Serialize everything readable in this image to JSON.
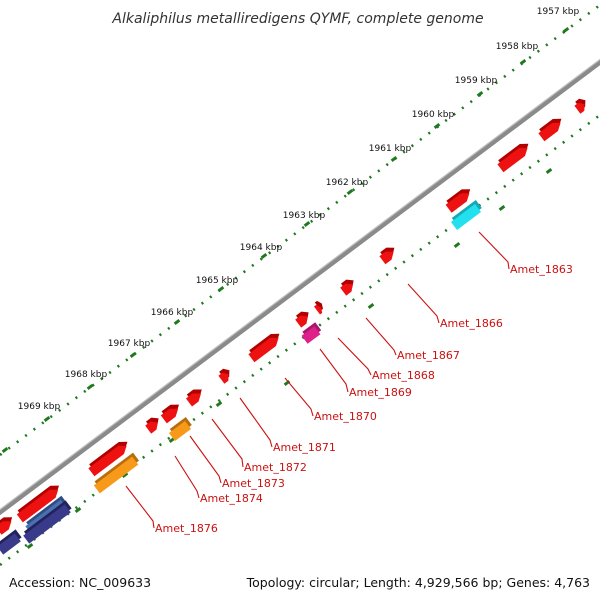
{
  "title": "Alkaliphilus metalliredigens QYMF, complete genome",
  "footer": {
    "accession": "Accession: NC_009633",
    "summary": "Topology: circular; Length: 4,929,566 bp; Genes: 4,763"
  },
  "ticks": [
    "1957 kbp",
    "1958 kbp",
    "1959 kbp",
    "1960 kbp",
    "1961 kbp",
    "1962 kbp",
    "1963 kbp",
    "1964 kbp",
    "1965 kbp",
    "1966 kbp",
    "1967 kbp",
    "1968 kbp",
    "1969 kbp"
  ],
  "gene_labels": [
    "Amet_1863",
    "Amet_1866",
    "Amet_1867",
    "Amet_1868",
    "Amet_1869",
    "Amet_1870",
    "Amet_1871",
    "Amet_1872",
    "Amet_1873",
    "Amet_1874",
    "Amet_1876"
  ],
  "colors": {
    "backbone": "#8a8a8a",
    "dotted_ring": "#1f7a1f",
    "cds": "#ee1111",
    "cds_dark": "#990000",
    "cyan": "#22e0ee",
    "magenta": "#e0208a",
    "orange": "#f79a1a",
    "blue": "#4a70b0",
    "navy": "#3a3a8a",
    "label": "#cc1111"
  }
}
